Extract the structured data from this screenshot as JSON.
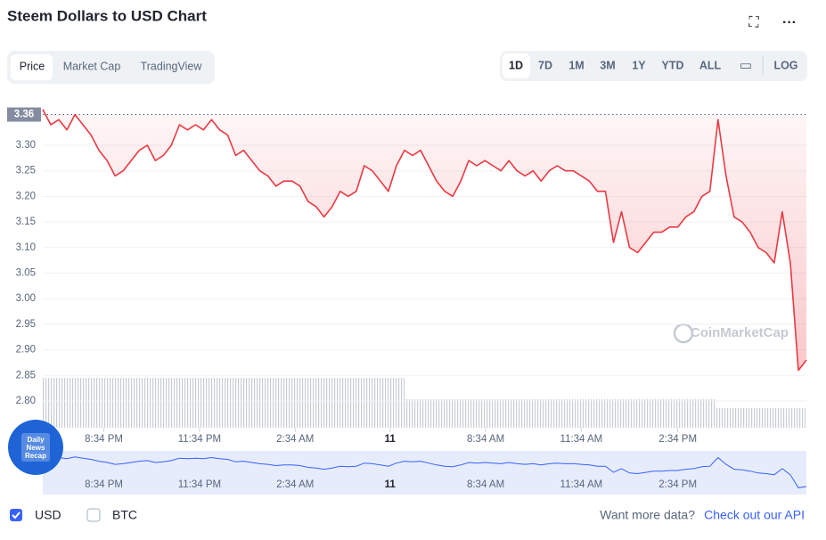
{
  "ui": {
    "title": "Steem Dollars to USD Chart",
    "tabs": [
      "Price",
      "Market Cap",
      "TradingView"
    ],
    "ranges": [
      "1D",
      "7D",
      "1M",
      "3M",
      "1Y",
      "YTD",
      "ALL"
    ],
    "log": "LOG",
    "currencies": [
      "USD",
      "BTC"
    ],
    "footer_text": "Want more data?",
    "footer_link": "Check out our API",
    "watermark": "CoinMarketCap",
    "badge": [
      "Daily",
      "News",
      "Recap"
    ]
  },
  "chart_data": {
    "type": "line",
    "series": [
      {
        "name": "Price",
        "color": "#ea3943",
        "values": [
          3.37,
          3.34,
          3.35,
          3.33,
          3.36,
          3.34,
          3.32,
          3.29,
          3.27,
          3.24,
          3.25,
          3.27,
          3.29,
          3.3,
          3.27,
          3.28,
          3.3,
          3.34,
          3.33,
          3.34,
          3.33,
          3.35,
          3.33,
          3.32,
          3.28,
          3.29,
          3.27,
          3.25,
          3.24,
          3.22,
          3.23,
          3.23,
          3.22,
          3.19,
          3.18,
          3.16,
          3.18,
          3.21,
          3.2,
          3.21,
          3.26,
          3.25,
          3.23,
          3.21,
          3.26,
          3.29,
          3.28,
          3.29,
          3.26,
          3.23,
          3.21,
          3.2,
          3.23,
          3.27,
          3.26,
          3.27,
          3.26,
          3.25,
          3.27,
          3.25,
          3.24,
          3.25,
          3.23,
          3.25,
          3.26,
          3.25,
          3.25,
          3.24,
          3.23,
          3.21,
          3.21,
          3.11,
          3.17,
          3.1,
          3.09,
          3.11,
          3.13,
          3.13,
          3.14,
          3.14,
          3.16,
          3.17,
          3.2,
          3.21,
          3.35,
          3.24,
          3.16,
          3.15,
          3.13,
          3.1,
          3.09,
          3.07,
          3.17,
          3.07,
          2.86,
          2.88
        ]
      }
    ],
    "current_price": {
      "value": 3.36,
      "label": "3.36"
    },
    "ylim": [
      2.75,
      3.4
    ],
    "yticks": [
      {
        "value": 2.8,
        "label": "2.80"
      },
      {
        "value": 2.85,
        "label": "2.85"
      },
      {
        "value": 2.9,
        "label": "2.90"
      },
      {
        "value": 2.95,
        "label": "2.95"
      },
      {
        "value": 3.0,
        "label": "3.00"
      },
      {
        "value": 3.05,
        "label": "3.05"
      },
      {
        "value": 3.1,
        "label": "3.10"
      },
      {
        "value": 3.15,
        "label": "3.15"
      },
      {
        "value": 3.2,
        "label": "3.20"
      },
      {
        "value": 3.25,
        "label": "3.25"
      },
      {
        "value": 3.3,
        "label": "3.30"
      }
    ],
    "xlim": [
      0,
      95
    ],
    "xticks": [
      {
        "value": 7.6,
        "label": "8:34 PM"
      },
      {
        "value": 19.5,
        "label": "11:34 PM"
      },
      {
        "value": 31.4,
        "label": "2:34 AM"
      },
      {
        "value": 43.2,
        "label": "11"
      },
      {
        "value": 55.1,
        "label": "8:34 AM"
      },
      {
        "value": 67.0,
        "label": "11:34 AM"
      },
      {
        "value": 79.0,
        "label": "2:34 PM"
      }
    ],
    "grid": true
  }
}
